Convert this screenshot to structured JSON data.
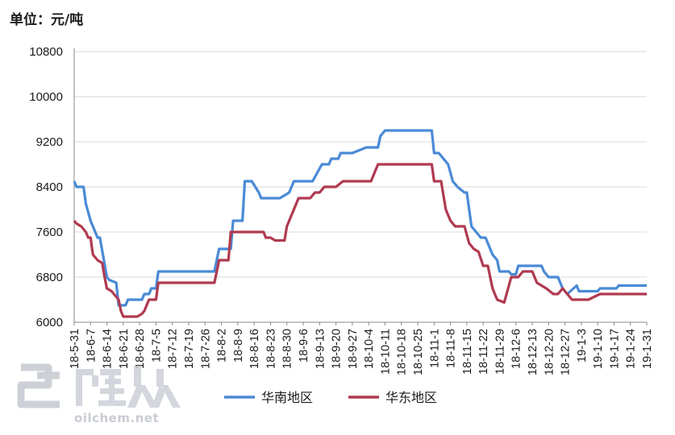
{
  "unit_label": "单位：元/吨",
  "watermark": {
    "brand": "隆众",
    "url": "oilchem.net"
  },
  "colors": {
    "south": "#4a8ad6",
    "east": "#b03a50",
    "grid": "#d9d9d9",
    "axis": "#888888"
  },
  "chart_data": {
    "type": "line",
    "title": "",
    "ylabel": "元/吨",
    "ylim": [
      6000,
      10800
    ],
    "yticks": [
      6000,
      6800,
      7600,
      8400,
      9200,
      10000,
      10800
    ],
    "x_labels": [
      "18-5-31",
      "18-6-7",
      "18-6-14",
      "18-6-21",
      "18-6-28",
      "18-7-5",
      "18-7-12",
      "18-7-19",
      "18-7-26",
      "18-8-2",
      "18-8-9",
      "18-8-16",
      "18-8-23",
      "18-8-30",
      "18-9-6",
      "18-9-13",
      "18-9-20",
      "18-9-27",
      "18-10-4",
      "18-10-11",
      "18-10-18",
      "18-10-25",
      "18-11-1",
      "18-11-8",
      "18-11-15",
      "18-11-22",
      "18-11-29",
      "18-12-6",
      "18-12-13",
      "18-12-20",
      "18-12-27",
      "19-1-3",
      "19-1-10",
      "19-1-17",
      "19-1-24",
      "19-1-31"
    ],
    "x_range": [
      "2018-05-31",
      "2019-01-31"
    ],
    "legend_position": "bottom",
    "series": [
      {
        "name": "华南地区",
        "color": "#4a8ad6",
        "points": [
          [
            "2018-05-31",
            8500
          ],
          [
            "2018-06-01",
            8400
          ],
          [
            "2018-06-04",
            8400
          ],
          [
            "2018-06-05",
            8100
          ],
          [
            "2018-06-07",
            7800
          ],
          [
            "2018-06-09",
            7600
          ],
          [
            "2018-06-10",
            7500
          ],
          [
            "2018-06-11",
            7500
          ],
          [
            "2018-06-14",
            6800
          ],
          [
            "2018-06-15",
            6750
          ],
          [
            "2018-06-18",
            6700
          ],
          [
            "2018-06-19",
            6300
          ],
          [
            "2018-06-22",
            6300
          ],
          [
            "2018-06-23",
            6400
          ],
          [
            "2018-06-29",
            6400
          ],
          [
            "2018-06-30",
            6500
          ],
          [
            "2018-07-02",
            6500
          ],
          [
            "2018-07-03",
            6600
          ],
          [
            "2018-07-05",
            6600
          ],
          [
            "2018-07-06",
            6900
          ],
          [
            "2018-07-30",
            6900
          ],
          [
            "2018-08-01",
            7300
          ],
          [
            "2018-08-06",
            7300
          ],
          [
            "2018-08-07",
            7800
          ],
          [
            "2018-08-11",
            7800
          ],
          [
            "2018-08-12",
            8500
          ],
          [
            "2018-08-15",
            8500
          ],
          [
            "2018-08-18",
            8300
          ],
          [
            "2018-08-19",
            8200
          ],
          [
            "2018-08-27",
            8200
          ],
          [
            "2018-08-29",
            8250
          ],
          [
            "2018-08-31",
            8300
          ],
          [
            "2018-09-02",
            8500
          ],
          [
            "2018-09-10",
            8500
          ],
          [
            "2018-09-14",
            8800
          ],
          [
            "2018-09-17",
            8800
          ],
          [
            "2018-09-18",
            8900
          ],
          [
            "2018-09-21",
            8900
          ],
          [
            "2018-09-22",
            9000
          ],
          [
            "2018-09-27",
            9000
          ],
          [
            "2018-09-30",
            9050
          ],
          [
            "2018-10-03",
            9100
          ],
          [
            "2018-10-08",
            9100
          ],
          [
            "2018-10-09",
            9300
          ],
          [
            "2018-10-10",
            9350
          ],
          [
            "2018-10-11",
            9400
          ],
          [
            "2018-10-31",
            9400
          ],
          [
            "2018-11-01",
            9000
          ],
          [
            "2018-11-03",
            9000
          ],
          [
            "2018-11-07",
            8800
          ],
          [
            "2018-11-09",
            8500
          ],
          [
            "2018-11-11",
            8400
          ],
          [
            "2018-11-14",
            8300
          ],
          [
            "2018-11-15",
            8300
          ],
          [
            "2018-11-17",
            7700
          ],
          [
            "2018-11-19",
            7600
          ],
          [
            "2018-11-21",
            7500
          ],
          [
            "2018-11-23",
            7500
          ],
          [
            "2018-11-26",
            7200
          ],
          [
            "2018-11-28",
            7100
          ],
          [
            "2018-11-29",
            6900
          ],
          [
            "2018-12-02",
            6900
          ],
          [
            "2018-12-03",
            6900
          ],
          [
            "2018-12-04",
            6850
          ],
          [
            "2018-12-06",
            6850
          ],
          [
            "2018-12-07",
            7000
          ],
          [
            "2018-12-17",
            7000
          ],
          [
            "2018-12-18",
            6900
          ],
          [
            "2018-12-20",
            6800
          ],
          [
            "2018-12-24",
            6800
          ],
          [
            "2018-12-26",
            6600
          ],
          [
            "2018-12-28",
            6500
          ],
          [
            "2019-01-01",
            6650
          ],
          [
            "2019-01-02",
            6550
          ],
          [
            "2019-01-09",
            6550
          ],
          [
            "2019-01-10",
            6550
          ],
          [
            "2019-01-11",
            6600
          ],
          [
            "2019-01-18",
            6600
          ],
          [
            "2019-01-19",
            6650
          ],
          [
            "2019-01-31",
            6650
          ]
        ]
      },
      {
        "name": "华东地区",
        "color": "#b03a50",
        "points": [
          [
            "2018-05-31",
            7800
          ],
          [
            "2018-06-01",
            7750
          ],
          [
            "2018-06-03",
            7700
          ],
          [
            "2018-06-05",
            7600
          ],
          [
            "2018-06-06",
            7500
          ],
          [
            "2018-06-07",
            7500
          ],
          [
            "2018-06-08",
            7200
          ],
          [
            "2018-06-10",
            7100
          ],
          [
            "2018-06-12",
            7050
          ],
          [
            "2018-06-13",
            6800
          ],
          [
            "2018-06-14",
            6600
          ],
          [
            "2018-06-16",
            6550
          ],
          [
            "2018-06-17",
            6500
          ],
          [
            "2018-06-19",
            6400
          ],
          [
            "2018-06-20",
            6200
          ],
          [
            "2018-06-21",
            6100
          ],
          [
            "2018-06-27",
            6100
          ],
          [
            "2018-06-29",
            6150
          ],
          [
            "2018-06-30",
            6200
          ],
          [
            "2018-07-01",
            6300
          ],
          [
            "2018-07-02",
            6400
          ],
          [
            "2018-07-05",
            6400
          ],
          [
            "2018-07-06",
            6700
          ],
          [
            "2018-07-30",
            6700
          ],
          [
            "2018-07-31",
            6900
          ],
          [
            "2018-08-01",
            7100
          ],
          [
            "2018-08-05",
            7100
          ],
          [
            "2018-08-06",
            7600
          ],
          [
            "2018-08-20",
            7600
          ],
          [
            "2018-08-21",
            7500
          ],
          [
            "2018-08-23",
            7500
          ],
          [
            "2018-08-25",
            7450
          ],
          [
            "2018-08-29",
            7450
          ],
          [
            "2018-08-30",
            7700
          ],
          [
            "2018-09-01",
            7900
          ],
          [
            "2018-09-04",
            8200
          ],
          [
            "2018-09-09",
            8200
          ],
          [
            "2018-09-11",
            8300
          ],
          [
            "2018-09-13",
            8300
          ],
          [
            "2018-09-15",
            8400
          ],
          [
            "2018-09-20",
            8400
          ],
          [
            "2018-09-23",
            8500
          ],
          [
            "2018-10-05",
            8500
          ],
          [
            "2018-10-08",
            8800
          ],
          [
            "2018-10-31",
            8800
          ],
          [
            "2018-11-01",
            8500
          ],
          [
            "2018-11-04",
            8500
          ],
          [
            "2018-11-06",
            8000
          ],
          [
            "2018-11-08",
            7800
          ],
          [
            "2018-11-10",
            7700
          ],
          [
            "2018-11-14",
            7700
          ],
          [
            "2018-11-16",
            7400
          ],
          [
            "2018-11-18",
            7300
          ],
          [
            "2018-11-20",
            7250
          ],
          [
            "2018-11-22",
            7000
          ],
          [
            "2018-11-24",
            7000
          ],
          [
            "2018-11-26",
            6600
          ],
          [
            "2018-11-28",
            6400
          ],
          [
            "2018-12-01",
            6350
          ],
          [
            "2018-12-02",
            6500
          ],
          [
            "2018-12-04",
            6800
          ],
          [
            "2018-12-07",
            6800
          ],
          [
            "2018-12-09",
            6900
          ],
          [
            "2018-12-13",
            6900
          ],
          [
            "2018-12-15",
            6700
          ],
          [
            "2018-12-17",
            6650
          ],
          [
            "2018-12-19",
            6600
          ],
          [
            "2018-12-22",
            6500
          ],
          [
            "2018-12-24",
            6500
          ],
          [
            "2018-12-26",
            6600
          ],
          [
            "2018-12-28",
            6500
          ],
          [
            "2018-12-30",
            6400
          ],
          [
            "2019-01-06",
            6400
          ],
          [
            "2019-01-11",
            6500
          ],
          [
            "2019-01-31",
            6500
          ]
        ]
      }
    ]
  }
}
